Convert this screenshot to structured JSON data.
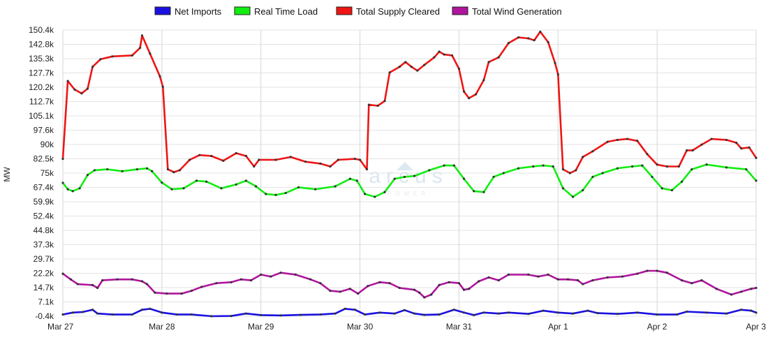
{
  "chart_data": {
    "type": "line",
    "title": "",
    "ylabel": "MW",
    "xlabel": "",
    "ylim": [
      -0.4,
      150.4
    ],
    "xlim": [
      0,
      7
    ],
    "grid": true,
    "legend_position": "top-center",
    "watermark": "arcus POWER",
    "y_ticks": [
      "150.4k",
      "142.8k",
      "135.3k",
      "127.7k",
      "120.2k",
      "112.7k",
      "105.1k",
      "97.6k",
      "90k",
      "82.5k",
      "75k",
      "67.4k",
      "59.9k",
      "52.4k",
      "44.8k",
      "37.3k",
      "29.7k",
      "22.2k",
      "14.7k",
      "7.1k",
      "-0.4k"
    ],
    "x_ticks": [
      "Mar 27",
      "Mar 28",
      "Mar 29",
      "Mar 30",
      "Mar 31",
      "Apr 1",
      "Apr 2",
      "Apr 3"
    ],
    "x_units": "days since Mar 27",
    "y_units": "thousand MW",
    "series": [
      {
        "name": "Net Imports",
        "color": "#1a10e0",
        "x": [
          0,
          0.1,
          0.2,
          0.3,
          0.35,
          0.5,
          0.7,
          0.8,
          0.88,
          1,
          1.15,
          1.3,
          1.5,
          1.7,
          1.85,
          2,
          2.2,
          2.4,
          2.6,
          2.75,
          2.85,
          2.95,
          3.05,
          3.2,
          3.35,
          3.45,
          3.55,
          3.65,
          3.8,
          3.95,
          4.05,
          4.15,
          4.25,
          4.4,
          4.5,
          4.7,
          4.85,
          5,
          5.15,
          5.3,
          5.4,
          5.6,
          5.8,
          6,
          6.2,
          6.3,
          6.5,
          6.7,
          6.85,
          6.95,
          7
        ],
        "y": [
          0.5,
          1.5,
          1.8,
          3,
          1,
          0.5,
          0.5,
          3,
          3.5,
          1.5,
          0.5,
          0.5,
          -0.4,
          -0.3,
          1,
          0.2,
          0,
          0.3,
          0.5,
          1,
          3.5,
          3,
          0.5,
          1.5,
          1,
          2.8,
          1,
          0.3,
          0.5,
          3,
          1.5,
          0.2,
          1.5,
          1,
          1.5,
          0.8,
          2.5,
          1.5,
          1,
          2.5,
          1.2,
          0.8,
          1.5,
          0.5,
          0.5,
          2,
          1.5,
          1,
          3,
          2.5,
          1.5
        ]
      },
      {
        "name": "Real Time Load",
        "color": "#11ee11",
        "x": [
          0,
          0.05,
          0.1,
          0.17,
          0.25,
          0.32,
          0.45,
          0.6,
          0.75,
          0.85,
          0.9,
          1,
          1.1,
          1.22,
          1.35,
          1.45,
          1.6,
          1.75,
          1.85,
          1.95,
          2.05,
          2.15,
          2.25,
          2.38,
          2.55,
          2.75,
          2.9,
          2.97,
          3.05,
          3.15,
          3.25,
          3.35,
          3.45,
          3.55,
          3.7,
          3.85,
          3.95,
          4.05,
          4.15,
          4.25,
          4.35,
          4.45,
          4.6,
          4.75,
          4.85,
          4.95,
          5.05,
          5.15,
          5.25,
          5.35,
          5.45,
          5.6,
          5.75,
          5.85,
          5.95,
          6.05,
          6.15,
          6.25,
          6.35,
          6.5,
          6.7,
          6.9,
          7
        ],
        "y": [
          69.9,
          66.5,
          65.5,
          67,
          74,
          76.5,
          77,
          76,
          77,
          77.5,
          76,
          70,
          66.5,
          67,
          71,
          70.5,
          67,
          69,
          71,
          68,
          64,
          63.5,
          64.5,
          67.5,
          66.5,
          68,
          72,
          71,
          64,
          62.5,
          65,
          72,
          73,
          73.5,
          76.5,
          79,
          79,
          72,
          65.5,
          65,
          73,
          75,
          77.5,
          78.5,
          79,
          78.5,
          67,
          62.5,
          66,
          73,
          75,
          77.5,
          78.5,
          79,
          73,
          67,
          66,
          70.5,
          77,
          79.5,
          78,
          77,
          71
        ]
      },
      {
        "name": "Total Supply Cleared",
        "color": "#ee1515",
        "x": [
          0,
          0.05,
          0.12,
          0.19,
          0.25,
          0.3,
          0.38,
          0.5,
          0.7,
          0.78,
          0.8,
          0.88,
          0.98,
          1.01,
          1.06,
          1.12,
          1.18,
          1.28,
          1.38,
          1.5,
          1.62,
          1.75,
          1.85,
          1.93,
          1.98,
          2.15,
          2.3,
          2.45,
          2.6,
          2.7,
          2.78,
          2.95,
          3,
          3.07,
          3.09,
          3.18,
          3.25,
          3.3,
          3.4,
          3.46,
          3.52,
          3.58,
          3.65,
          3.75,
          3.8,
          3.85,
          3.93,
          4,
          4.05,
          4.1,
          4.17,
          4.25,
          4.3,
          4.4,
          4.5,
          4.6,
          4.7,
          4.76,
          4.82,
          4.9,
          4.97,
          5,
          5.05,
          5.12,
          5.18,
          5.25,
          5.35,
          5.5,
          5.6,
          5.7,
          5.8,
          5.9,
          6,
          6.1,
          6.22,
          6.3,
          6.36,
          6.45,
          6.55,
          6.7,
          6.8,
          6.85,
          6.93,
          7
        ],
        "y": [
          82.5,
          123.5,
          119,
          117,
          119.5,
          131,
          135,
          136.5,
          137,
          141,
          147.5,
          138,
          126,
          120.5,
          77,
          75.5,
          76.5,
          82,
          84.5,
          84,
          81.5,
          85.5,
          84,
          78.5,
          82,
          82,
          83.5,
          81,
          80,
          78.5,
          82,
          82.5,
          82,
          77,
          111,
          110.5,
          113,
          128,
          131,
          133.5,
          131,
          129,
          132,
          136,
          139,
          137.5,
          137,
          130,
          118,
          114.5,
          116.5,
          124,
          133.5,
          136,
          143.5,
          146.5,
          146,
          145,
          149.5,
          144,
          133,
          127,
          77,
          75,
          76.5,
          83.5,
          86.5,
          91.5,
          92.5,
          93,
          92,
          85,
          79.5,
          78.5,
          78.5,
          87,
          87,
          90,
          93,
          92.5,
          91,
          88,
          88.5,
          83
        ]
      },
      {
        "name": "Total Wind Generation",
        "color": "#b0149e",
        "x": [
          0,
          0.08,
          0.15,
          0.3,
          0.35,
          0.4,
          0.55,
          0.7,
          0.8,
          0.85,
          0.93,
          1.05,
          1.2,
          1.3,
          1.4,
          1.55,
          1.7,
          1.8,
          1.9,
          2,
          2.1,
          2.2,
          2.35,
          2.5,
          2.6,
          2.7,
          2.8,
          2.9,
          2.98,
          3.08,
          3.2,
          3.3,
          3.4,
          3.55,
          3.6,
          3.65,
          3.72,
          3.8,
          3.9,
          4,
          4.05,
          4.1,
          4.2,
          4.3,
          4.4,
          4.5,
          4.7,
          4.8,
          4.9,
          5,
          5.1,
          5.2,
          5.25,
          5.35,
          5.5,
          5.65,
          5.8,
          5.9,
          6,
          6.1,
          6.25,
          6.35,
          6.45,
          6.6,
          6.75,
          6.85,
          6.95,
          7
        ],
        "y": [
          22,
          19,
          16.5,
          16,
          14.5,
          18.5,
          19,
          19,
          18,
          16.5,
          12,
          11.5,
          11.5,
          13,
          15,
          17,
          17.5,
          19,
          18.5,
          21.5,
          20.5,
          22.5,
          21.5,
          19,
          17,
          13,
          12.5,
          14,
          11.5,
          15.5,
          17.5,
          17,
          14.5,
          13.5,
          12,
          9.5,
          11,
          16,
          17.5,
          17,
          13.5,
          14,
          18,
          20,
          18.5,
          21.5,
          21.5,
          20.5,
          21.5,
          19,
          19,
          18.5,
          16.5,
          18.5,
          20,
          20.5,
          22,
          23.5,
          23.5,
          22.5,
          18.5,
          17,
          18.5,
          14,
          11,
          12.5,
          14,
          14.5
        ]
      }
    ]
  }
}
